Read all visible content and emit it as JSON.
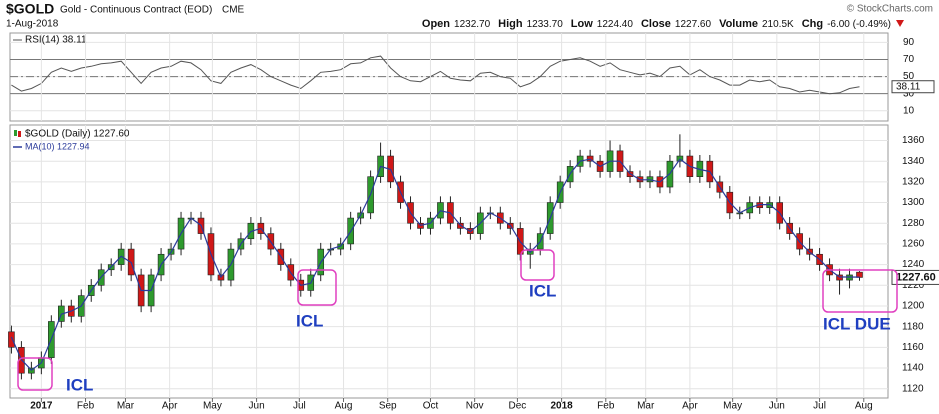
{
  "header": {
    "symbol": "$GOLD",
    "description": "Gold - Continuous Contract (EOD)",
    "exchange": "CME",
    "date": "1-Aug-2018",
    "credit": "© StockCharts.com",
    "quote": [
      {
        "label": "Open",
        "value": "1232.70"
      },
      {
        "label": "High",
        "value": "1233.70"
      },
      {
        "label": "Low",
        "value": "1224.40"
      },
      {
        "label": "Close",
        "value": "1227.60"
      },
      {
        "label": "Volume",
        "value": "210.5K"
      },
      {
        "label": "Chg",
        "value": "-6.00 (-0.49%)"
      }
    ]
  },
  "chart_data": [
    {
      "type": "line",
      "ylim": [
        -2,
        101
      ],
      "yticks": [
        10,
        30,
        50,
        70,
        90
      ],
      "reference_lines": [
        70,
        50,
        30
      ],
      "grid": true,
      "x": [
        -21,
        -14,
        -7,
        0,
        7,
        14,
        21,
        28,
        35,
        42,
        49,
        56,
        63,
        70,
        77,
        84,
        91,
        98,
        105,
        112,
        119,
        126,
        133,
        140,
        147,
        154,
        161,
        168,
        175,
        182,
        189,
        196,
        203,
        210,
        217,
        224,
        231,
        238,
        245,
        252,
        259,
        266,
        273,
        280,
        287,
        294,
        301,
        308,
        315,
        322,
        329,
        336,
        343,
        350,
        357,
        364,
        371,
        378,
        385,
        392,
        399,
        406,
        413,
        420,
        427,
        434,
        441,
        448,
        455,
        462,
        469,
        476,
        483,
        490,
        497,
        504,
        511,
        518,
        525,
        532,
        539,
        546,
        553,
        560,
        567,
        574
      ],
      "xlim": [
        -22,
        594
      ],
      "series": [
        {
          "name": "RSI(14) 38.11",
          "color": "#555555",
          "last_label": "38.11",
          "values": [
            40,
            33,
            36,
            42,
            55,
            60,
            56,
            60,
            62,
            65,
            66,
            68,
            55,
            42,
            55,
            60,
            62,
            68,
            66,
            58,
            45,
            42,
            55,
            60,
            64,
            58,
            50,
            45,
            40,
            36,
            45,
            55,
            56,
            58,
            65,
            66,
            72,
            74,
            60,
            50,
            45,
            44,
            50,
            56,
            48,
            46,
            45,
            54,
            55,
            50,
            48,
            38,
            42,
            50,
            62,
            68,
            70,
            72,
            68,
            62,
            66,
            58,
            55,
            52,
            54,
            50,
            60,
            62,
            52,
            58,
            50,
            46,
            40,
            40,
            46,
            44,
            46,
            38,
            36,
            32,
            34,
            32,
            30,
            31,
            36,
            38.11
          ]
        }
      ]
    },
    {
      "type": "candlestick",
      "ylim": [
        1111,
        1375
      ],
      "yticks": [
        1120,
        1140,
        1160,
        1180,
        1200,
        1220,
        1240,
        1260,
        1280,
        1300,
        1320,
        1340,
        1360
      ],
      "grid": true,
      "xlim": [
        -22,
        594
      ],
      "xticks": [
        {
          "value": 0,
          "label": "2017"
        },
        {
          "value": 31,
          "label": "Feb"
        },
        {
          "value": 59,
          "label": "Mar"
        },
        {
          "value": 90,
          "label": "Apr"
        },
        {
          "value": 120,
          "label": "May"
        },
        {
          "value": 151,
          "label": "Jun"
        },
        {
          "value": 181,
          "label": "Jul"
        },
        {
          "value": 212,
          "label": "Aug"
        },
        {
          "value": 243,
          "label": "Sep"
        },
        {
          "value": 273,
          "label": "Oct"
        },
        {
          "value": 304,
          "label": "Nov"
        },
        {
          "value": 334,
          "label": "Dec"
        },
        {
          "value": 365,
          "label": "2018"
        },
        {
          "value": 396,
          "label": "Feb"
        },
        {
          "value": 424,
          "label": "Mar"
        },
        {
          "value": 455,
          "label": "Apr"
        },
        {
          "value": 485,
          "label": "May"
        },
        {
          "value": 516,
          "label": "Jun"
        },
        {
          "value": 546,
          "label": "Jul"
        },
        {
          "value": 577,
          "label": "Aug"
        }
      ],
      "x": [
        -21,
        -14,
        -7,
        0,
        7,
        14,
        21,
        28,
        35,
        42,
        49,
        56,
        63,
        70,
        77,
        84,
        91,
        98,
        105,
        112,
        119,
        126,
        133,
        140,
        147,
        154,
        161,
        168,
        175,
        182,
        189,
        196,
        203,
        210,
        217,
        224,
        231,
        238,
        245,
        252,
        259,
        266,
        273,
        280,
        287,
        294,
        301,
        308,
        315,
        322,
        329,
        336,
        343,
        350,
        357,
        364,
        371,
        378,
        385,
        392,
        399,
        406,
        413,
        420,
        427,
        434,
        441,
        448,
        455,
        462,
        469,
        476,
        483,
        490,
        497,
        504,
        511,
        518,
        525,
        532,
        539,
        546,
        553,
        560,
        567,
        574
      ],
      "up_color": "#2e9a2e",
      "down_color": "#d01818",
      "series": [
        {
          "name": "$GOLD (Daily) 1227.60",
          "last_label": "1227.60",
          "open": [
            1175,
            1160,
            1135,
            1140,
            1150,
            1185,
            1200,
            1190,
            1210,
            1220,
            1235,
            1240,
            1255,
            1230,
            1200,
            1230,
            1250,
            1255,
            1285,
            1285,
            1270,
            1230,
            1225,
            1255,
            1265,
            1280,
            1270,
            1255,
            1240,
            1225,
            1215,
            1230,
            1255,
            1255,
            1260,
            1285,
            1290,
            1325,
            1345,
            1320,
            1300,
            1280,
            1275,
            1285,
            1300,
            1280,
            1275,
            1270,
            1290,
            1290,
            1280,
            1275,
            1250,
            1255,
            1270,
            1300,
            1320,
            1335,
            1345,
            1340,
            1330,
            1350,
            1330,
            1325,
            1320,
            1325,
            1315,
            1340,
            1345,
            1325,
            1340,
            1320,
            1310,
            1290,
            1290,
            1300,
            1295,
            1300,
            1280,
            1270,
            1255,
            1250,
            1240,
            1230,
            1225,
            1232.7
          ],
          "high": [
            1181,
            1166,
            1146,
            1156,
            1191,
            1206,
            1206,
            1216,
            1226,
            1241,
            1246,
            1261,
            1261,
            1236,
            1236,
            1256,
            1261,
            1291,
            1291,
            1291,
            1276,
            1236,
            1261,
            1271,
            1286,
            1286,
            1276,
            1261,
            1246,
            1231,
            1236,
            1261,
            1261,
            1266,
            1291,
            1296,
            1331,
            1358,
            1351,
            1326,
            1306,
            1286,
            1291,
            1306,
            1306,
            1286,
            1281,
            1296,
            1296,
            1296,
            1286,
            1281,
            1261,
            1276,
            1306,
            1326,
            1341,
            1351,
            1351,
            1346,
            1360,
            1356,
            1336,
            1331,
            1331,
            1331,
            1346,
            1366,
            1351,
            1346,
            1346,
            1326,
            1316,
            1296,
            1306,
            1306,
            1306,
            1306,
            1286,
            1276,
            1266,
            1256,
            1246,
            1236,
            1236,
            1233.7
          ],
          "low": [
            1154,
            1129,
            1129,
            1134,
            1144,
            1179,
            1184,
            1184,
            1204,
            1214,
            1229,
            1234,
            1224,
            1194,
            1194,
            1224,
            1244,
            1249,
            1279,
            1264,
            1224,
            1219,
            1219,
            1249,
            1259,
            1264,
            1249,
            1234,
            1219,
            1209,
            1209,
            1224,
            1249,
            1249,
            1254,
            1279,
            1284,
            1319,
            1314,
            1294,
            1274,
            1269,
            1269,
            1279,
            1274,
            1269,
            1264,
            1264,
            1284,
            1274,
            1269,
            1244,
            1236,
            1249,
            1264,
            1294,
            1314,
            1329,
            1334,
            1324,
            1324,
            1324,
            1319,
            1314,
            1314,
            1309,
            1309,
            1334,
            1319,
            1319,
            1314,
            1304,
            1284,
            1284,
            1284,
            1289,
            1289,
            1274,
            1264,
            1249,
            1244,
            1234,
            1224,
            1211,
            1217,
            1224.4
          ],
          "close": [
            1160,
            1135,
            1140,
            1150,
            1185,
            1200,
            1190,
            1210,
            1220,
            1235,
            1240,
            1255,
            1230,
            1200,
            1230,
            1250,
            1255,
            1285,
            1285,
            1270,
            1230,
            1225,
            1255,
            1265,
            1280,
            1270,
            1255,
            1240,
            1225,
            1215,
            1230,
            1255,
            1255,
            1260,
            1285,
            1290,
            1325,
            1345,
            1320,
            1300,
            1280,
            1275,
            1285,
            1300,
            1280,
            1275,
            1270,
            1290,
            1290,
            1280,
            1275,
            1250,
            1255,
            1270,
            1300,
            1320,
            1335,
            1345,
            1340,
            1330,
            1350,
            1330,
            1325,
            1320,
            1325,
            1315,
            1340,
            1345,
            1325,
            1340,
            1320,
            1310,
            1290,
            1290,
            1300,
            1295,
            1300,
            1280,
            1270,
            1255,
            1250,
            1240,
            1230,
            1225,
            1230,
            1227.6
          ]
        },
        {
          "name": "MA(10) 1227.94",
          "color": "#2a3a9a",
          "values": [
            1170,
            1148,
            1138,
            1145,
            1168,
            1192,
            1195,
            1200,
            1215,
            1228,
            1238,
            1248,
            1242,
            1215,
            1215,
            1240,
            1252,
            1270,
            1285,
            1278,
            1250,
            1228,
            1240,
            1260,
            1272,
            1275,
            1262,
            1248,
            1232,
            1220,
            1222,
            1242,
            1255,
            1258,
            1272,
            1288,
            1308,
            1335,
            1332,
            1310,
            1290,
            1278,
            1280,
            1292,
            1290,
            1278,
            1272,
            1280,
            1290,
            1285,
            1278,
            1262,
            1252,
            1262,
            1285,
            1310,
            1328,
            1340,
            1342,
            1335,
            1340,
            1340,
            1328,
            1322,
            1322,
            1320,
            1328,
            1342,
            1335,
            1332,
            1330,
            1315,
            1300,
            1290,
            1295,
            1298,
            1298,
            1290,
            1275,
            1262,
            1252,
            1245,
            1235,
            1228,
            1228,
            1227.94
          ]
        }
      ],
      "annotations": [
        "ICL",
        "ICL",
        "ICL",
        "ICL DUE"
      ]
    }
  ]
}
